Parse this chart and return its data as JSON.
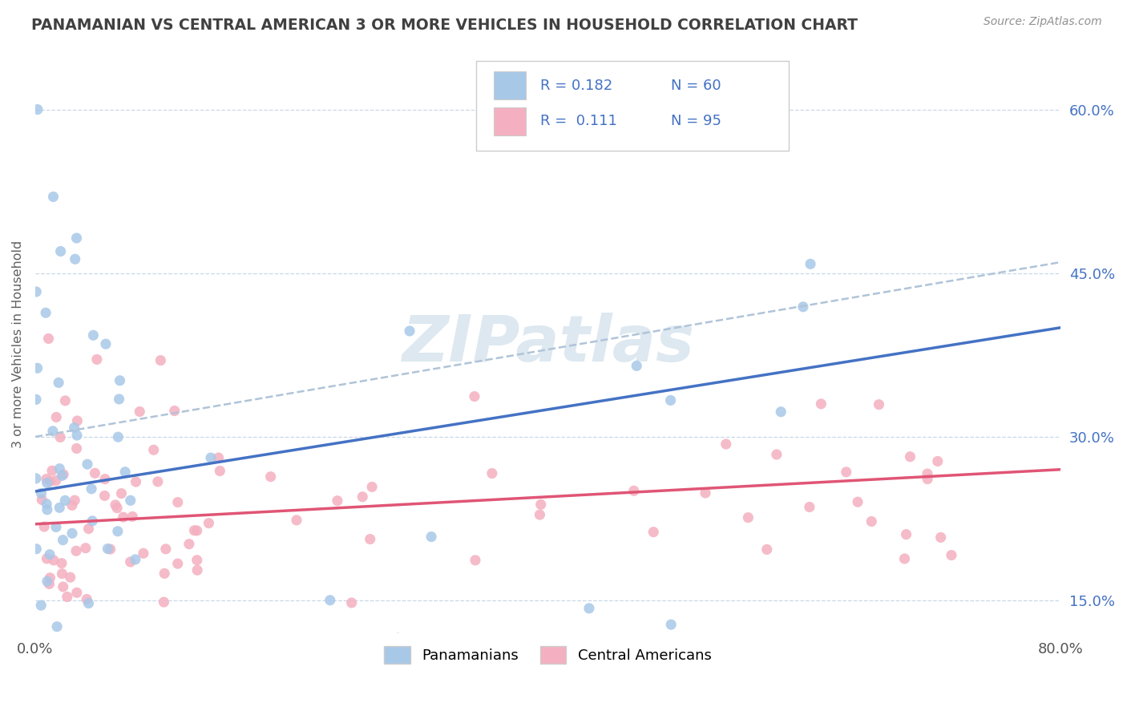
{
  "title": "PANAMANIAN VS CENTRAL AMERICAN 3 OR MORE VEHICLES IN HOUSEHOLD CORRELATION CHART",
  "source": "Source: ZipAtlas.com",
  "ylabel": "3 or more Vehicles in Household",
  "xlim": [
    0.0,
    80.0
  ],
  "ylim": [
    12.0,
    65.0
  ],
  "yticks_right": [
    15.0,
    30.0,
    45.0,
    60.0
  ],
  "xticks": [
    0,
    80
  ],
  "R_blue": 0.182,
  "N_blue": 60,
  "R_pink": 0.111,
  "N_pink": 95,
  "blue_scatter_color": "#a8c8e8",
  "pink_scatter_color": "#f4b0c0",
  "blue_line_color": "#4472c4",
  "pink_line_color": "#e05575",
  "dashed_line_color": "#b0c4d8",
  "grid_color": "#c8d8e8",
  "tick_color_right": "#4472c4",
  "tick_color_x": "#555555",
  "title_color": "#404040",
  "source_color": "#909090",
  "ylabel_color": "#606060",
  "watermark_color": "#dde8f0",
  "legend_labels": [
    "Panamanians",
    "Central Americans"
  ],
  "legend_border_color": "#cccccc",
  "blue_trend_start_y": 25.0,
  "blue_trend_end_y": 40.0,
  "pink_trend_start_y": 22.0,
  "pink_trend_end_y": 27.0,
  "dash_trend_start_y": 30.0,
  "dash_trend_end_y": 46.0
}
